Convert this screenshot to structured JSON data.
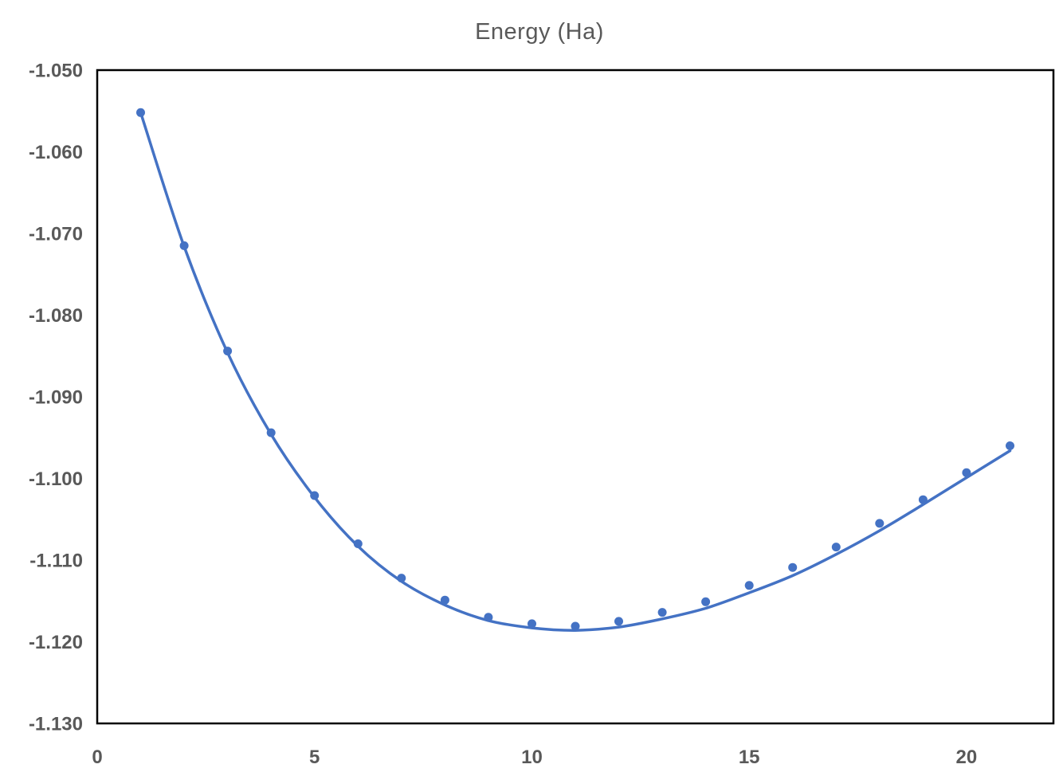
{
  "chart_data": {
    "type": "scatter",
    "title": "Energy (Ha)",
    "xlabel": "",
    "ylabel": "",
    "xlim": [
      0,
      22
    ],
    "ylim": [
      -1.13,
      -1.05
    ],
    "grid": false,
    "legend": "none",
    "x_ticks": [
      {
        "value": 0,
        "label": "0"
      },
      {
        "value": 5,
        "label": "5"
      },
      {
        "value": 10,
        "label": "10"
      },
      {
        "value": 15,
        "label": "15"
      },
      {
        "value": 20,
        "label": "20"
      }
    ],
    "y_ticks": [
      {
        "value": -1.05,
        "label": "-1.050"
      },
      {
        "value": -1.06,
        "label": "-1.060"
      },
      {
        "value": -1.07,
        "label": "-1.070"
      },
      {
        "value": -1.08,
        "label": "-1.080"
      },
      {
        "value": -1.09,
        "label": "-1.090"
      },
      {
        "value": -1.1,
        "label": "-1.100"
      },
      {
        "value": -1.11,
        "label": "-1.110"
      },
      {
        "value": -1.12,
        "label": "-1.120"
      },
      {
        "value": -1.13,
        "label": "-1.130"
      }
    ],
    "series": [
      {
        "name": "energy-points",
        "render": "markers",
        "x": [
          1,
          2,
          3,
          4,
          5,
          6,
          7,
          8,
          9,
          10,
          11,
          12,
          13,
          14,
          15,
          16,
          17,
          18,
          19,
          20,
          21
        ],
        "y": [
          -1.0552,
          -1.0715,
          -1.0844,
          -1.0944,
          -1.1021,
          -1.108,
          -1.1122,
          -1.1149,
          -1.117,
          -1.1178,
          -1.1181,
          -1.1175,
          -1.1164,
          -1.1151,
          -1.1131,
          -1.1109,
          -1.1084,
          -1.1055,
          -1.1026,
          -1.0993,
          -1.096
        ]
      },
      {
        "name": "fit-curve",
        "render": "smooth-line",
        "x": [
          1,
          2,
          3,
          4,
          5,
          6,
          7,
          8,
          9,
          10,
          11,
          12,
          13,
          14,
          15,
          16,
          17,
          18,
          19,
          20,
          21
        ],
        "y": [
          -1.0552,
          -1.0716,
          -1.0846,
          -1.0946,
          -1.1023,
          -1.1083,
          -1.1126,
          -1.1155,
          -1.1174,
          -1.1183,
          -1.1186,
          -1.1182,
          -1.1172,
          -1.1159,
          -1.114,
          -1.1119,
          -1.1093,
          -1.1064,
          -1.1032,
          -1.0999,
          -1.0966
        ]
      }
    ],
    "colors": {
      "series_blue": "#4472C4",
      "tick_label": "#595959",
      "title": "#595959",
      "plot_border": "#000000"
    },
    "marker_radius": 5.5,
    "line_width": 3.5
  }
}
